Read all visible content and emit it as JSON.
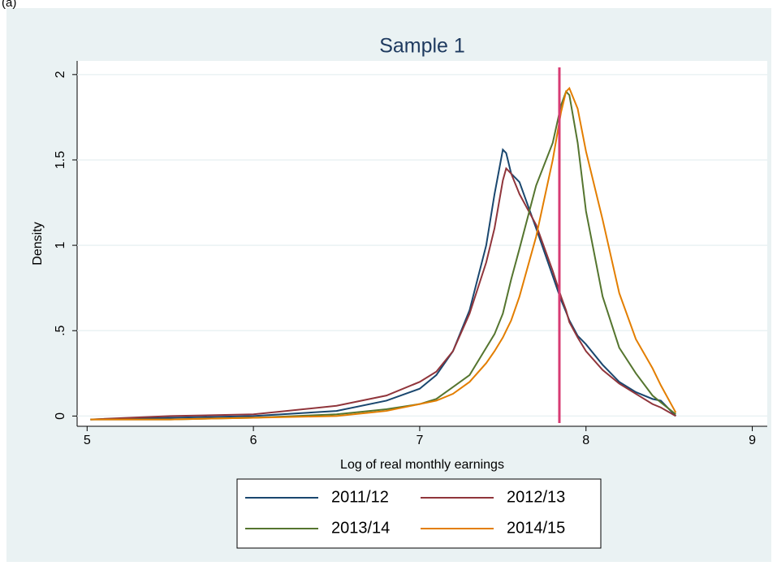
{
  "panel_label": "(a)",
  "chart_data": {
    "type": "line",
    "title": "Sample 1",
    "x_label": "Log of real monthly earnings",
    "y_label": "Density",
    "x": [
      5.02,
      5.5,
      6,
      6.5,
      6.8,
      7,
      7.1,
      7.2,
      7.3,
      7.4,
      7.45,
      7.5,
      7.52,
      7.55,
      7.6,
      7.7,
      7.8,
      7.85,
      7.88,
      7.9,
      7.95,
      8,
      8.1,
      8.2,
      8.3,
      8.4,
      8.45,
      8.54
    ],
    "series": [
      {
        "name": "2011/12",
        "color": "#1a476f",
        "values": [
          -0.02,
          -0.01,
          0.0,
          0.03,
          0.09,
          0.16,
          0.24,
          0.38,
          0.62,
          1.0,
          1.3,
          1.56,
          1.54,
          1.42,
          1.37,
          1.1,
          0.82,
          0.68,
          0.61,
          0.56,
          0.47,
          0.42,
          0.3,
          0.2,
          0.14,
          0.1,
          0.09,
          0.0
        ]
      },
      {
        "name": "2012/13",
        "color": "#90353b",
        "values": [
          -0.02,
          0.0,
          0.01,
          0.06,
          0.12,
          0.2,
          0.26,
          0.38,
          0.6,
          0.9,
          1.1,
          1.38,
          1.45,
          1.42,
          1.3,
          1.12,
          0.85,
          0.7,
          0.62,
          0.55,
          0.46,
          0.38,
          0.27,
          0.19,
          0.13,
          0.07,
          0.05,
          0.0
        ]
      },
      {
        "name": "2013/14",
        "color": "#55752f",
        "values": [
          -0.02,
          -0.02,
          -0.01,
          0.01,
          0.04,
          0.07,
          0.1,
          0.17,
          0.24,
          0.4,
          0.48,
          0.6,
          0.68,
          0.8,
          0.98,
          1.35,
          1.6,
          1.82,
          1.9,
          1.88,
          1.6,
          1.2,
          0.7,
          0.4,
          0.25,
          0.12,
          0.08,
          0.01
        ]
      },
      {
        "name": "2014/15",
        "color": "#e37e00",
        "values": [
          -0.02,
          -0.02,
          -0.01,
          0.0,
          0.03,
          0.07,
          0.09,
          0.13,
          0.2,
          0.31,
          0.38,
          0.46,
          0.5,
          0.56,
          0.7,
          1.05,
          1.5,
          1.78,
          1.9,
          1.92,
          1.8,
          1.55,
          1.15,
          0.72,
          0.45,
          0.28,
          0.18,
          0.02
        ]
      }
    ],
    "vline": {
      "x": 7.84,
      "color": "#d83b73"
    },
    "xlim": [
      4.94,
      9.09
    ],
    "ylim": [
      -0.06,
      2.08
    ],
    "xticks": [
      5,
      6,
      7,
      8,
      9
    ],
    "yticks": [
      0,
      {
        "value": 0.5,
        "label": ".5"
      },
      1,
      1.5,
      2
    ],
    "grid": true,
    "legend": "bottom"
  }
}
